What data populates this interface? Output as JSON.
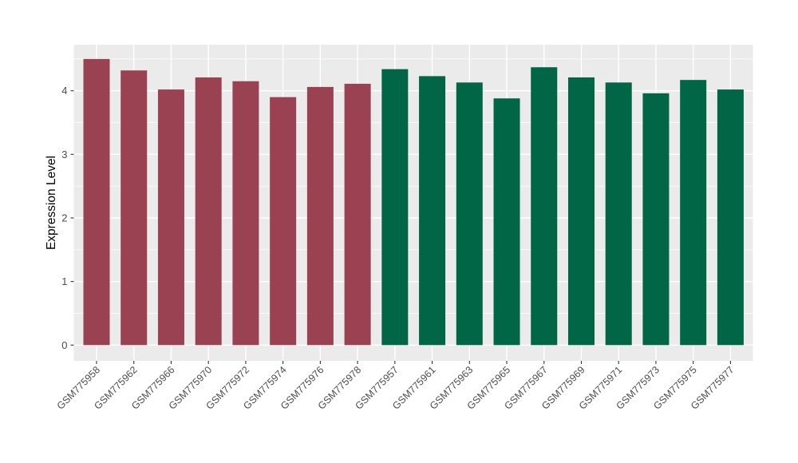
{
  "figure": {
    "ylabel": "Expression Level",
    "xlabel": "",
    "title": ""
  },
  "colors": {
    "group1_fill": "#9A4251",
    "group2_fill": "#006646",
    "panel_background": "#EBEBEB",
    "gridline": "#FFFFFF",
    "axis_text": "#4D4D4D",
    "axis_title": "#000000",
    "tick_mark": "#333333",
    "page_background": "#FFFFFF"
  },
  "chart_data": {
    "type": "bar",
    "title": "",
    "xlabel": "",
    "ylabel": "Expression Level",
    "ylim": [
      0,
      4.72
    ],
    "yticks": [
      0,
      1,
      2,
      3,
      4
    ],
    "yticks_minor": [
      0.5,
      1.5,
      2.5,
      3.5,
      4.5
    ],
    "grid": "white major+minor horizontal lines and white vertical lines at category centers on gray panel",
    "legend_position": "none",
    "x_tick_label_rotation_deg": 45,
    "categories": [
      "GSM775958",
      "GSM775962",
      "GSM775966",
      "GSM775970",
      "GSM775972",
      "GSM775974",
      "GSM775976",
      "GSM775978",
      "GSM775957",
      "GSM775961",
      "GSM775963",
      "GSM775965",
      "GSM775967",
      "GSM775969",
      "GSM775971",
      "GSM775973",
      "GSM775975",
      "GSM775977"
    ],
    "values": [
      4.5,
      4.32,
      4.02,
      4.21,
      4.15,
      3.9,
      4.06,
      4.11,
      4.34,
      4.23,
      4.13,
      3.88,
      4.37,
      4.21,
      4.13,
      3.96,
      4.17,
      4.02
    ],
    "groups": [
      "group1",
      "group1",
      "group1",
      "group1",
      "group1",
      "group1",
      "group1",
      "group1",
      "group2",
      "group2",
      "group2",
      "group2",
      "group2",
      "group2",
      "group2",
      "group2",
      "group2",
      "group2"
    ],
    "group_colors": {
      "group1": "#9A4251",
      "group2": "#006646"
    },
    "series": [
      {
        "name": "group1",
        "color": "#9A4251",
        "categories": [
          "GSM775958",
          "GSM775962",
          "GSM775966",
          "GSM775970",
          "GSM775972",
          "GSM775974",
          "GSM775976",
          "GSM775978"
        ],
        "values": [
          4.5,
          4.32,
          4.02,
          4.21,
          4.15,
          3.9,
          4.06,
          4.11
        ]
      },
      {
        "name": "group2",
        "color": "#006646",
        "categories": [
          "GSM775957",
          "GSM775961",
          "GSM775963",
          "GSM775965",
          "GSM775967",
          "GSM775969",
          "GSM775971",
          "GSM775973",
          "GSM775975",
          "GSM775977"
        ],
        "values": [
          4.34,
          4.23,
          4.13,
          3.88,
          4.37,
          4.21,
          4.13,
          3.96,
          4.17,
          4.02
        ]
      }
    ]
  }
}
